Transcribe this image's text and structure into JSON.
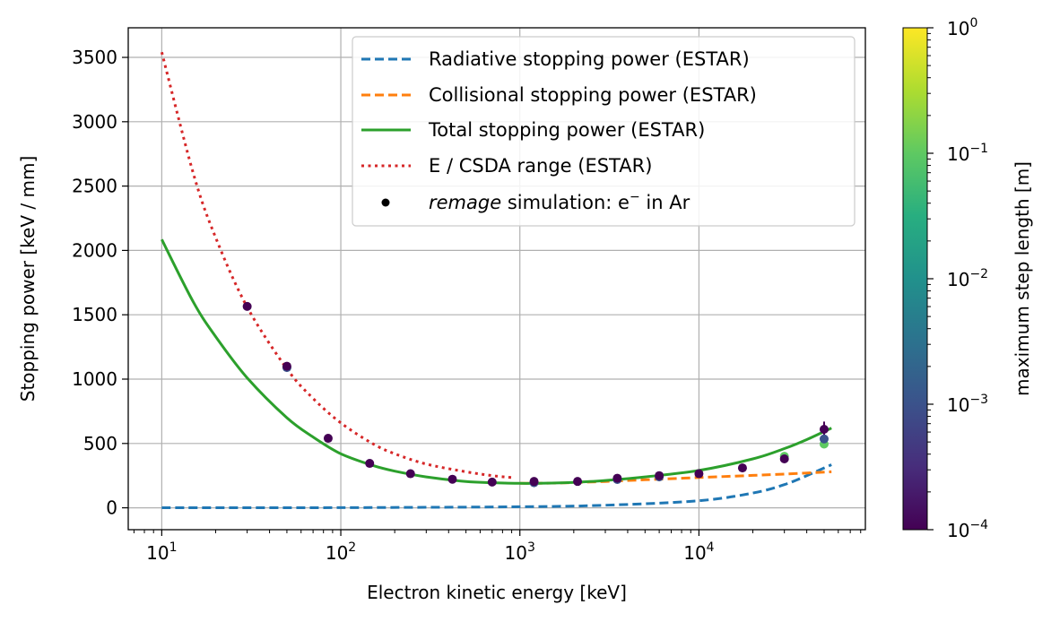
{
  "chart_data": {
    "type": "line",
    "xlabel": "Electron kinetic energy [keV]",
    "ylabel": "Stopping power [keV / mm]",
    "xscale": "log",
    "xlim": [
      6.5,
      85000
    ],
    "ylim": [
      -170,
      3730
    ],
    "grid": true,
    "legend_position": "top-right",
    "x_ticks": [
      {
        "value": 10,
        "base": "10",
        "exp": "1"
      },
      {
        "value": 100,
        "base": "10",
        "exp": "2"
      },
      {
        "value": 1000,
        "base": "10",
        "exp": "3"
      },
      {
        "value": 10000,
        "base": "10",
        "exp": "4"
      }
    ],
    "y_ticks": [
      {
        "value": 0,
        "label": "0"
      },
      {
        "value": 500,
        "label": "500"
      },
      {
        "value": 1000,
        "label": "1000"
      },
      {
        "value": 1500,
        "label": "1500"
      },
      {
        "value": 2000,
        "label": "2000"
      },
      {
        "value": 2500,
        "label": "2500"
      },
      {
        "value": 3000,
        "label": "3000"
      },
      {
        "value": 3500,
        "label": "3500"
      }
    ],
    "series": [
      {
        "name": "Radiative stopping power (ESTAR)",
        "style": "dashed",
        "color": "#1f77b4",
        "x": [
          10,
          100,
          1000,
          3000,
          10000,
          20000,
          30000,
          40000,
          55000
        ],
        "y": [
          0.5,
          1.5,
          8,
          20,
          55,
          115,
          180,
          250,
          335
        ]
      },
      {
        "name": "Collisional stopping power (ESTAR)",
        "style": "dashed",
        "color": "#ff7f0e",
        "x": [
          1000,
          1500,
          2000,
          3000,
          5000,
          10000,
          20000,
          30000,
          55000
        ],
        "y": [
          190,
          192,
          196,
          205,
          218,
          235,
          252,
          262,
          280
        ]
      },
      {
        "name": "Total stopping power (ESTAR)",
        "style": "solid",
        "color": "#2ca02c",
        "x": [
          10,
          15,
          20,
          30,
          50,
          70,
          100,
          150,
          200,
          300,
          500,
          700,
          1000,
          1500,
          2000,
          3000,
          5000,
          10000,
          20000,
          30000,
          40000,
          55000
        ],
        "y": [
          2085,
          1600,
          1330,
          1010,
          700,
          550,
          420,
          330,
          285,
          240,
          205,
          195,
          190,
          192,
          198,
          212,
          240,
          290,
          380,
          460,
          530,
          620
        ]
      },
      {
        "name": "E / CSDA range (ESTAR)",
        "style": "dotted",
        "color": "#d62728",
        "x": [
          10,
          15,
          20,
          30,
          50,
          70,
          100,
          150,
          200,
          300,
          500,
          700,
          900
        ],
        "y": [
          3540,
          2600,
          2100,
          1560,
          1080,
          850,
          660,
          500,
          420,
          340,
          280,
          250,
          235
        ]
      }
    ],
    "scatter": {
      "name": "remage simulation: e⁻ in Ar",
      "legend_italic": "remage",
      "legend_rest": " simulation: e",
      "legend_sup": "−",
      "legend_tail": "  in Ar",
      "points": [
        {
          "x": 30,
          "y": 1565,
          "c": 0.0001
        },
        {
          "x": 50,
          "y": 1100,
          "c": 0.0001
        },
        {
          "x": 50,
          "y": 1090,
          "c": 0.001
        },
        {
          "x": 85,
          "y": 540,
          "c": 0.0001
        },
        {
          "x": 145,
          "y": 345,
          "c": 0.0001
        },
        {
          "x": 245,
          "y": 265,
          "c": 0.0001
        },
        {
          "x": 420,
          "y": 222,
          "c": 0.0001
        },
        {
          "x": 700,
          "y": 200,
          "c": 0.0001
        },
        {
          "x": 1200,
          "y": 205,
          "c": 0.0001
        },
        {
          "x": 1200,
          "y": 195,
          "c": 0.001
        },
        {
          "x": 2100,
          "y": 205,
          "c": 0.0001
        },
        {
          "x": 3500,
          "y": 230,
          "c": 0.0001
        },
        {
          "x": 3500,
          "y": 220,
          "c": 0.001
        },
        {
          "x": 6000,
          "y": 250,
          "c": 0.0001
        },
        {
          "x": 6000,
          "y": 240,
          "c": 0.001
        },
        {
          "x": 10000,
          "y": 265,
          "c": 0.0001
        },
        {
          "x": 17500,
          "y": 310,
          "c": 0.0001
        },
        {
          "x": 30000,
          "y": 380,
          "c": 0.0001
        },
        {
          "x": 30000,
          "y": 400,
          "c": 0.1
        },
        {
          "x": 50000,
          "y": 610,
          "c": 0.0001
        },
        {
          "x": 50000,
          "y": 535,
          "c": 0.001
        },
        {
          "x": 50000,
          "y": 495,
          "c": 0.1
        }
      ],
      "error_bars": [
        {
          "x": 50000,
          "y_low": 555,
          "y_high": 670
        }
      ]
    },
    "colorbar": {
      "label": "maximum step length [m]",
      "colormap": "viridis",
      "scale": "log",
      "range": [
        0.0001,
        1
      ],
      "ticks": [
        {
          "value": 1,
          "base": "10",
          "exp": "0"
        },
        {
          "value": 0.1,
          "base": "10",
          "exp": "−1"
        },
        {
          "value": 0.01,
          "base": "10",
          "exp": "−2"
        },
        {
          "value": 0.001,
          "base": "10",
          "exp": "−3"
        },
        {
          "value": 0.0001,
          "base": "10",
          "exp": "−4"
        }
      ]
    }
  }
}
